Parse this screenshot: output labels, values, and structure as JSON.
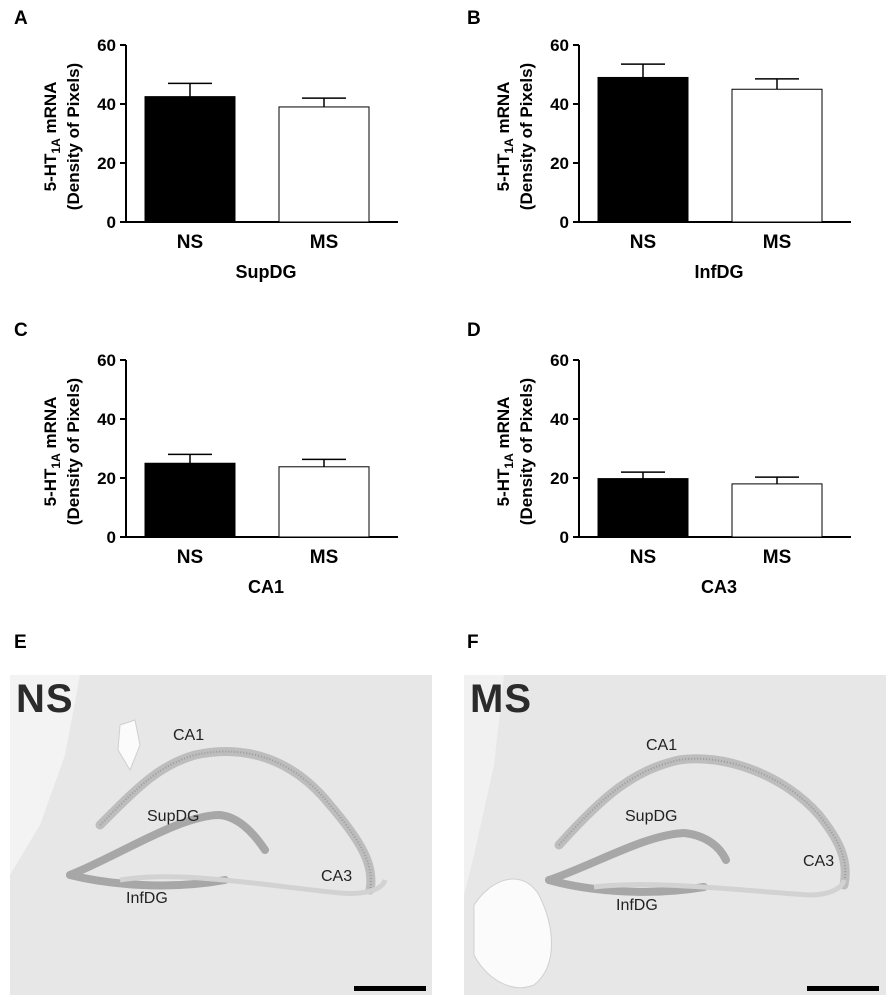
{
  "chart_data": [
    {
      "panel": "A",
      "type": "bar",
      "categories": [
        "NS",
        "MS"
      ],
      "values": [
        42.5,
        39.0
      ],
      "errors": [
        4.5,
        3.0
      ],
      "fills": [
        "#000000",
        "#ffffff"
      ],
      "xlabel": "SupDG",
      "ylabel_top_prefix": "5-HT",
      "ylabel_top_sub": "1A",
      "ylabel_top_suffix": " mRNA",
      "ylabel_bottom": "(Density of Pixels)",
      "ylim": [
        0,
        60
      ],
      "yticks": [
        "0",
        "20",
        "40",
        "60"
      ]
    },
    {
      "panel": "B",
      "type": "bar",
      "categories": [
        "NS",
        "MS"
      ],
      "values": [
        49.0,
        45.0
      ],
      "errors": [
        4.5,
        3.5
      ],
      "fills": [
        "#000000",
        "#ffffff"
      ],
      "xlabel": "InfDG",
      "ylabel_top_prefix": "5-HT",
      "ylabel_top_sub": "1A",
      "ylabel_top_suffix": " mRNA",
      "ylabel_bottom": "(Density of Pixels)",
      "ylim": [
        0,
        60
      ],
      "yticks": [
        "0",
        "20",
        "40",
        "60"
      ]
    },
    {
      "panel": "C",
      "type": "bar",
      "categories": [
        "NS",
        "MS"
      ],
      "values": [
        25.0,
        23.8
      ],
      "errors": [
        3.0,
        2.5
      ],
      "fills": [
        "#000000",
        "#ffffff"
      ],
      "xlabel": "CA1",
      "ylabel_top_prefix": "5-HT",
      "ylabel_top_sub": "1A",
      "ylabel_top_suffix": " mRNA",
      "ylabel_bottom": "(Density of Pixels)",
      "ylim": [
        0,
        60
      ],
      "yticks": [
        "0",
        "20",
        "40",
        "60"
      ]
    },
    {
      "panel": "D",
      "type": "bar",
      "categories": [
        "NS",
        "MS"
      ],
      "values": [
        19.8,
        18.0
      ],
      "errors": [
        2.2,
        2.3
      ],
      "fills": [
        "#000000",
        "#ffffff"
      ],
      "xlabel": "CA3",
      "ylabel_top_prefix": "5-HT",
      "ylabel_top_sub": "1A",
      "ylabel_top_suffix": " mRNA",
      "ylabel_bottom": "(Density of Pixels)",
      "ylim": [
        0,
        60
      ],
      "yticks": [
        "0",
        "20",
        "40",
        "60"
      ]
    }
  ],
  "images": [
    {
      "panel": "E",
      "condition": "NS",
      "regions": {
        "ca1": "CA1",
        "supdg": "SupDG",
        "infdg": "InfDG",
        "ca3": "CA3"
      }
    },
    {
      "panel": "F",
      "condition": "MS",
      "regions": {
        "ca1": "CA1",
        "supdg": "SupDG",
        "infdg": "InfDG",
        "ca3": "CA3"
      }
    }
  ]
}
